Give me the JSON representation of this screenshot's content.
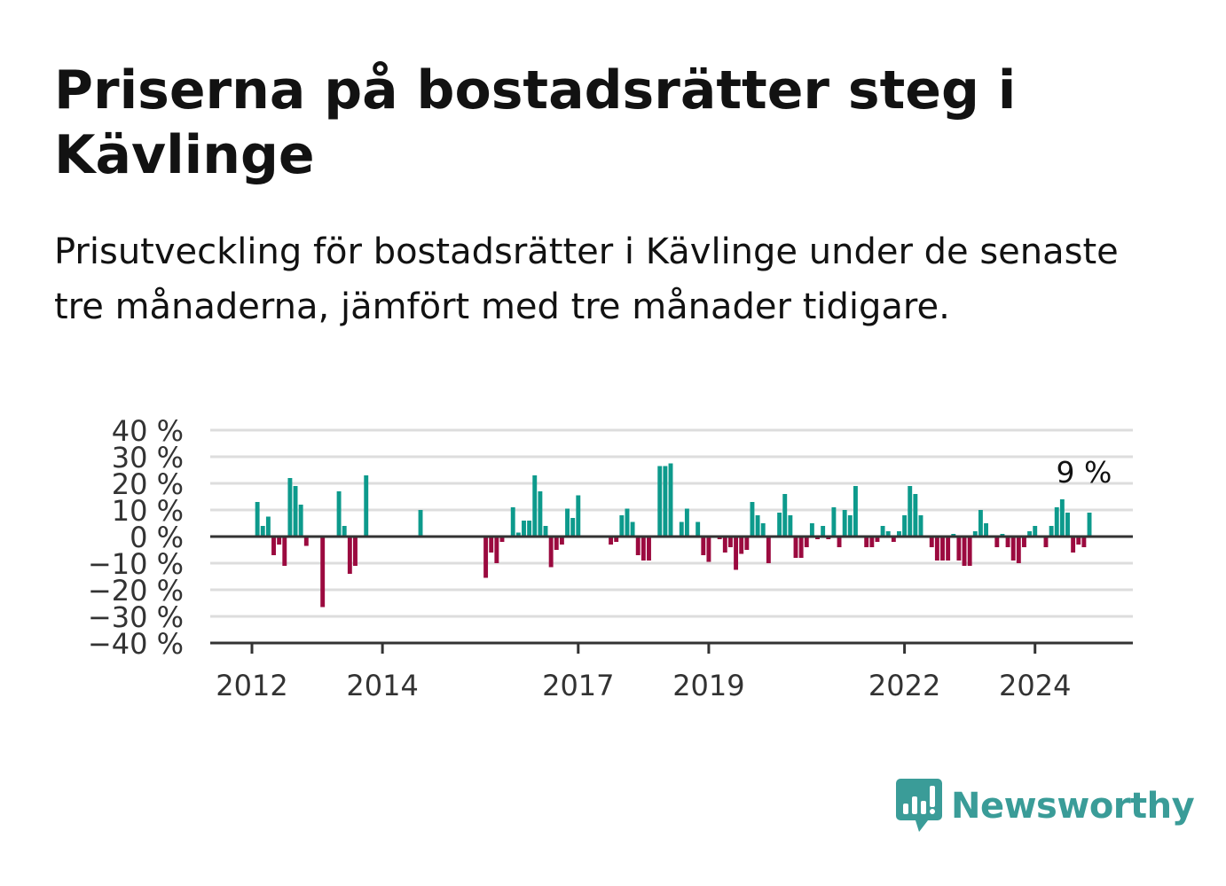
{
  "title": "Priserna på bostadsrätter steg i Kävlinge",
  "subtitle": "Prisutveckling för bostadsrätter i Kävlinge under de senaste tre månaderna, jämfört med tre månader tidigare.",
  "brand": {
    "name": "Newsworthy",
    "color": "#3a9c98",
    "icon": "newsworthy-logo-icon"
  },
  "colors": {
    "positive": "#0d9a8c",
    "negative": "#9b0a3f",
    "grid": "#dddddd",
    "axis": "#333333"
  },
  "chart_data": {
    "type": "bar",
    "grid": true,
    "ylim": [
      -40,
      40
    ],
    "y_ticks": [
      40,
      30,
      20,
      10,
      0,
      -10,
      -20,
      -30,
      -40
    ],
    "y_tick_labels": [
      "40 %",
      "30 %",
      "20 %",
      "10 %",
      "0 %",
      "−10 %",
      "−20 %",
      "−30 %",
      "−40 %"
    ],
    "x_tick_labels": [
      "2012",
      "2014",
      "2017",
      "2019",
      "2022",
      "2024"
    ],
    "x_tick_months": [
      0,
      24,
      60,
      84,
      120,
      144
    ],
    "annotation": {
      "text": "9 %",
      "month": 153,
      "value": 9
    },
    "series": [
      {
        "values": [
          [
            1,
            13
          ],
          [
            2,
            4
          ],
          [
            3,
            7.5
          ],
          [
            4,
            -7
          ],
          [
            5,
            -3
          ],
          [
            6,
            -11
          ],
          [
            7,
            22
          ],
          [
            8,
            19
          ],
          [
            9,
            12
          ],
          [
            10,
            -3.5
          ],
          [
            13,
            -26.5
          ],
          [
            16,
            17
          ],
          [
            17,
            4
          ],
          [
            18,
            -14
          ],
          [
            19,
            -11
          ],
          [
            21,
            23
          ],
          [
            31,
            10
          ],
          [
            43,
            -15.5
          ],
          [
            44,
            -6
          ],
          [
            45,
            -10
          ],
          [
            46,
            -2
          ],
          [
            48,
            11
          ],
          [
            49,
            1.5
          ],
          [
            50,
            6
          ],
          [
            51,
            6
          ],
          [
            52,
            23
          ],
          [
            53,
            17
          ],
          [
            54,
            4
          ],
          [
            55,
            -11.5
          ],
          [
            56,
            -5
          ],
          [
            57,
            -3
          ],
          [
            58,
            10.5
          ],
          [
            59,
            7
          ],
          [
            60,
            15.5
          ],
          [
            66,
            -3
          ],
          [
            67,
            -2
          ],
          [
            68,
            8
          ],
          [
            69,
            10.5
          ],
          [
            70,
            5.5
          ],
          [
            71,
            -7
          ],
          [
            72,
            -9
          ],
          [
            73,
            -9
          ],
          [
            75,
            26.5
          ],
          [
            76,
            26.5
          ],
          [
            77,
            27.5
          ],
          [
            79,
            5.5
          ],
          [
            80,
            10.5
          ],
          [
            82,
            5.5
          ],
          [
            83,
            -7
          ],
          [
            84,
            -9.5
          ],
          [
            86,
            -1
          ],
          [
            87,
            -6
          ],
          [
            88,
            -4
          ],
          [
            89,
            -12.5
          ],
          [
            90,
            -6.5
          ],
          [
            91,
            -5
          ],
          [
            92,
            13
          ],
          [
            93,
            8
          ],
          [
            94,
            5
          ],
          [
            95,
            -10
          ],
          [
            97,
            9
          ],
          [
            98,
            16
          ],
          [
            99,
            8
          ],
          [
            100,
            -8
          ],
          [
            101,
            -8
          ],
          [
            102,
            -4
          ],
          [
            103,
            5
          ],
          [
            104,
            -1
          ],
          [
            105,
            4
          ],
          [
            106,
            -1
          ],
          [
            107,
            11
          ],
          [
            108,
            -4
          ],
          [
            109,
            10
          ],
          [
            110,
            8
          ],
          [
            111,
            19
          ],
          [
            113,
            -4
          ],
          [
            114,
            -4
          ],
          [
            115,
            -2
          ],
          [
            116,
            4
          ],
          [
            117,
            2
          ],
          [
            118,
            -2
          ],
          [
            119,
            2
          ],
          [
            120,
            8
          ],
          [
            121,
            19
          ],
          [
            122,
            16
          ],
          [
            123,
            8
          ],
          [
            125,
            -4
          ],
          [
            126,
            -9
          ],
          [
            127,
            -9
          ],
          [
            128,
            -9
          ],
          [
            129,
            1
          ],
          [
            130,
            -9
          ],
          [
            131,
            -11
          ],
          [
            132,
            -11
          ],
          [
            133,
            2
          ],
          [
            134,
            10
          ],
          [
            135,
            5
          ],
          [
            137,
            -4
          ],
          [
            138,
            1
          ],
          [
            139,
            -4
          ],
          [
            140,
            -9
          ],
          [
            141,
            -10
          ],
          [
            142,
            -4
          ],
          [
            143,
            2
          ],
          [
            144,
            4
          ],
          [
            146,
            -4
          ],
          [
            147,
            4
          ],
          [
            148,
            11
          ],
          [
            149,
            14
          ],
          [
            150,
            9
          ],
          [
            151,
            -6
          ],
          [
            152,
            -3
          ],
          [
            153,
            -4
          ],
          [
            154,
            9
          ]
        ]
      }
    ]
  }
}
